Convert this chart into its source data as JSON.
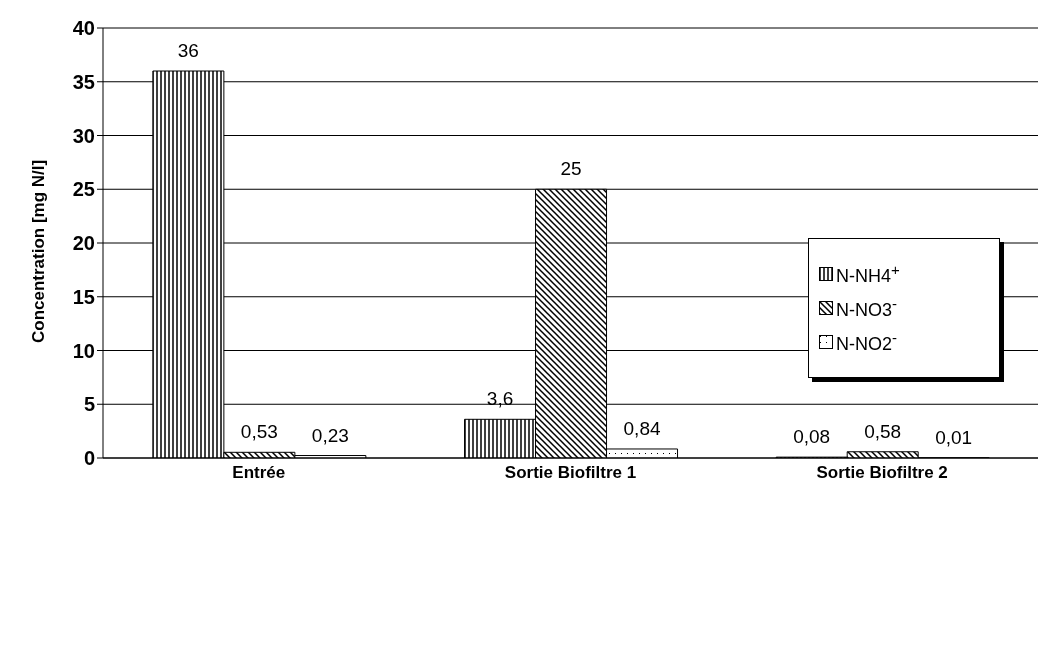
{
  "chart_data": {
    "type": "bar",
    "ylabel": "Concentration [mg N/l]",
    "categories": [
      "Entrée",
      "Sortie Biofiltre 1",
      "Sortie Biofiltre 2"
    ],
    "series": [
      {
        "name": "N-NH4$^{+}$",
        "color": "#000000",
        "values": [
          36,
          3.6,
          0.08
        ],
        "value_labels": [
          "36",
          "3,6",
          "0,08"
        ]
      },
      {
        "name": "N-NO3$^{-}$",
        "color": "#000000",
        "values": [
          0.53,
          25,
          0.58
        ],
        "value_labels": [
          "0,53",
          "25",
          "0,58"
        ]
      },
      {
        "name": "N-NO2$^{-}$",
        "color": "#000000",
        "values": [
          0.23,
          0.84,
          0.01
        ],
        "value_labels": [
          "0,23",
          "0,84",
          "0,01"
        ]
      }
    ],
    "ylim": [
      0,
      40
    ],
    "yticks": [
      0,
      5,
      10,
      15,
      20,
      25,
      30,
      35,
      40
    ],
    "grid": "y",
    "legend": "right"
  }
}
